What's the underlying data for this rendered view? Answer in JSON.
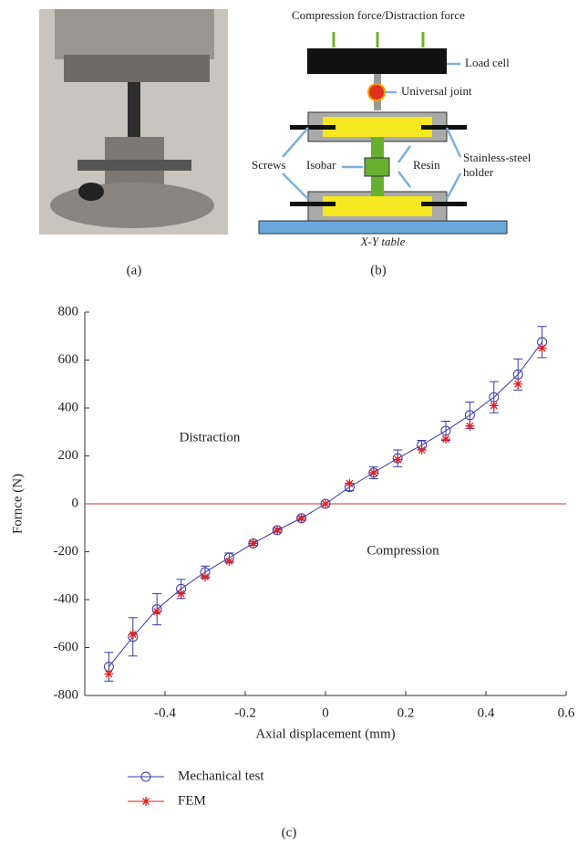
{
  "diagram": {
    "labels": [
      "Compression force/Distraction force",
      "Load cell",
      "Universal joint",
      "Screws",
      "Isobar",
      "Resin",
      "Stainless-steel",
      "holder",
      "X-Y table"
    ],
    "panel_labels": [
      "(a)",
      "(b)",
      "(c)"
    ]
  },
  "chart_data": {
    "type": "line",
    "xlabel": "Axial displacement (mm)",
    "ylabel": "Fornce (N)",
    "annotations": [
      "Distraction",
      "Compression"
    ],
    "x": [
      -0.54,
      -0.48,
      -0.42,
      -0.36,
      -0.3,
      -0.24,
      -0.18,
      -0.12,
      -0.06,
      0,
      0.06,
      0.12,
      0.18,
      0.24,
      0.3,
      0.36,
      0.42,
      0.48,
      0.54
    ],
    "series": [
      {
        "name": "Mechanical test",
        "color": "#3a3aa8",
        "marker": "circle",
        "values": [
          -680,
          -555,
          -440,
          -355,
          -285,
          -225,
          -165,
          -110,
          -60,
          0,
          70,
          130,
          190,
          245,
          305,
          370,
          445,
          540,
          675
        ],
        "errors": [
          60,
          80,
          65,
          40,
          25,
          20,
          8,
          8,
          8,
          0,
          15,
          25,
          35,
          20,
          40,
          55,
          65,
          65,
          65
        ]
      },
      {
        "name": "FEM",
        "color": "#e02020",
        "marker": "asterisk",
        "values": [
          -710,
          -545,
          -450,
          -375,
          -305,
          -240,
          -165,
          -110,
          -60,
          0,
          85,
          130,
          185,
          225,
          270,
          325,
          410,
          500,
          650
        ]
      }
    ],
    "reference_line": {
      "value": 0,
      "color": "#d03030"
    },
    "xlim": [
      -0.6,
      0.6
    ],
    "xticks": [
      -0.4,
      -0.2,
      0,
      0.2,
      0.4,
      0.6
    ],
    "ylim": [
      -800,
      800
    ],
    "yticks": [
      -800,
      -600,
      -400,
      -200,
      0,
      200,
      400,
      600,
      800
    ]
  }
}
